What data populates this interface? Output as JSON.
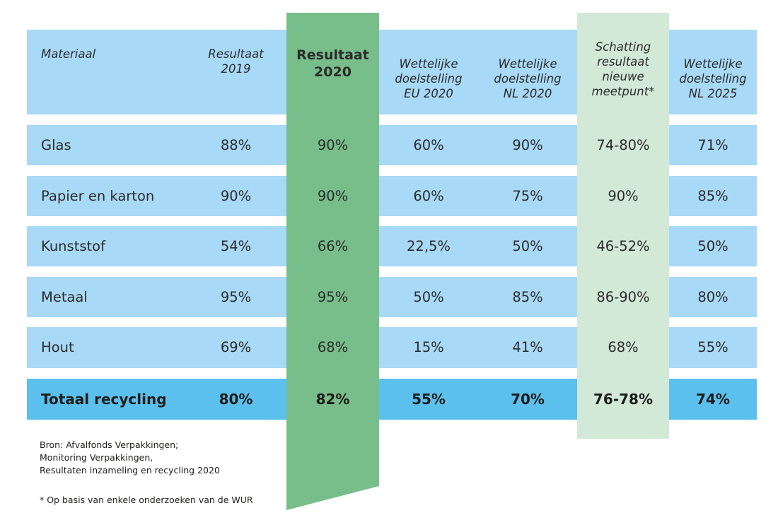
{
  "chart_data": {
    "type": "table",
    "columns": [
      "Materiaal",
      "Resultaat\n2019",
      "Resultaat\n2020",
      "Wettelijke\ndoelstelling\nEU 2020",
      "Wettelijke\ndoelstelling\nNL 2020",
      "Schatting\nresultaat\nnieuwe\nmeetpunt*",
      "Wettelijke\ndoelstelling\nNL 2025"
    ],
    "rows": [
      [
        "Glas",
        "88%",
        "90%",
        "60%",
        "90%",
        "74-80%",
        "71%"
      ],
      [
        "Papier en karton",
        "90%",
        "90%",
        "60%",
        "75%",
        "90%",
        "85%"
      ],
      [
        "Kunststof",
        "54%",
        "66%",
        "22,5%",
        "50%",
        "46-52%",
        "50%"
      ],
      [
        "Metaal",
        "95%",
        "95%",
        "50%",
        "85%",
        "86-90%",
        "80%"
      ],
      [
        "Hout",
        "69%",
        "68%",
        "15%",
        "41%",
        "68%",
        "55%"
      ]
    ],
    "total": [
      "Totaal recycling",
      "80%",
      "82%",
      "55%",
      "70%",
      "76-78%",
      "74%"
    ],
    "highlighted_columns": [
      2,
      5
    ],
    "colors": {
      "header_band": "#a8d9f7",
      "row_band": "#a8d9f7",
      "total_band": "#5bc0ee",
      "highlight_2020": "#78be8a",
      "highlight_estimate": "#d3e9d8"
    }
  },
  "footnotes": {
    "source_lines": [
      "Bron: Afvalfonds Verpakkingen;",
      "Monitoring Verpakkingen,",
      "Resultaten inzameling en recycling 2020"
    ],
    "asterisk_note": "* Op basis van enkele onderzoeken van de WUR"
  }
}
